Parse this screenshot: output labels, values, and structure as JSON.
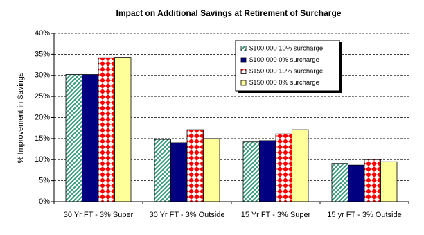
{
  "chart_data": {
    "type": "bar",
    "title": "Impact on Additional Savings at Retirement of Surcharge",
    "y_label": "% Improvement in Savings",
    "categories": [
      "30 Yr FT - 3% Super",
      "30 Yr FT - 3% Outside",
      "15 Yr FT - 3% Super",
      "15 yr FT - 3% Outside"
    ],
    "series": [
      {
        "name": "$100,000 10% surcharge",
        "color": "#339977",
        "pattern": "diagonal",
        "values": [
          30.2,
          14.8,
          14.2,
          9.1
        ]
      },
      {
        "name": "$100,000 0% surcharge",
        "color": "#000080",
        "pattern": "solid",
        "values": [
          30.2,
          14.0,
          14.5,
          8.7
        ]
      },
      {
        "name": "$150,000 10% surcharge",
        "color": "#ff0000",
        "pattern": "checker",
        "values": [
          34.2,
          17.1,
          16.1,
          10.0
        ]
      },
      {
        "name": "$150,000 0% surcharge",
        "color": "#ffff99",
        "pattern": "solid",
        "values": [
          34.3,
          15.0,
          17.1,
          9.5
        ]
      }
    ],
    "ylim": [
      0,
      40
    ],
    "yticks": [
      {
        "value": 0,
        "label": "0%"
      },
      {
        "value": 5,
        "label": "5%"
      },
      {
        "value": 10,
        "label": "10%"
      },
      {
        "value": 15,
        "label": "15%"
      },
      {
        "value": 20,
        "label": "20%"
      },
      {
        "value": 25,
        "label": "25%"
      },
      {
        "value": 30,
        "label": "30%"
      },
      {
        "value": 35,
        "label": "35%"
      },
      {
        "value": 40,
        "label": "40%"
      }
    ],
    "grid": true,
    "legend": "upper right"
  }
}
